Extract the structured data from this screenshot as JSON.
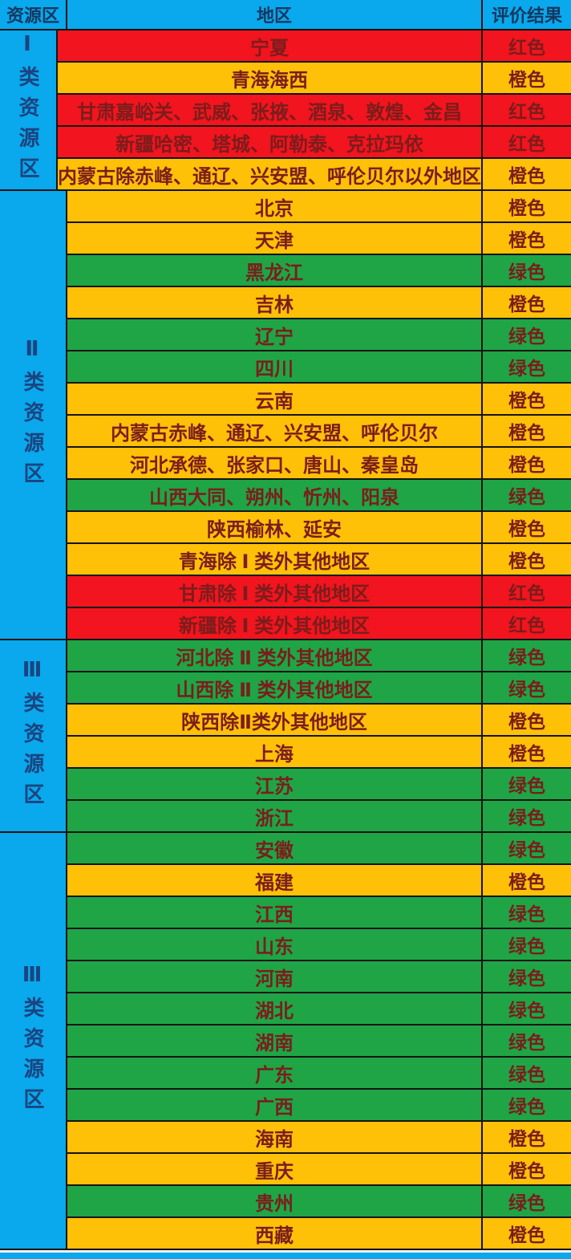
{
  "header": {
    "col_zone": "资源区",
    "col_region": "地区",
    "col_result": "评价结果"
  },
  "colors": {
    "blue": "#0AA8EC",
    "red": "#F2141E",
    "orange": "#FFC008",
    "green": "#1FA546"
  },
  "result_labels": {
    "red": "红色",
    "orange": "橙色",
    "green": "绿色"
  },
  "chart_data": {
    "type": "table",
    "title": "",
    "columns": [
      "资源区",
      "地区",
      "评价结果"
    ],
    "groups": [
      {
        "label": "Ⅰ类资源区",
        "rows": [
          {
            "region": "宁夏",
            "color": "red",
            "result": "红色"
          },
          {
            "region": "青海海西",
            "color": "orange",
            "result": "橙色"
          },
          {
            "region": "甘肃嘉峪关、武威、张掖、酒泉、敦煌、金昌",
            "color": "red",
            "result": "红色"
          },
          {
            "region": "新疆哈密、塔城、阿勒泰、克拉玛依",
            "color": "red",
            "result": "红色"
          },
          {
            "region": "内蒙古除赤峰、通辽、兴安盟、呼伦贝尔以外地区",
            "color": "orange",
            "result": "橙色"
          }
        ]
      },
      {
        "label": "Ⅱ类资源区",
        "rows": [
          {
            "region": "北京",
            "color": "orange",
            "result": "橙色"
          },
          {
            "region": "天津",
            "color": "orange",
            "result": "橙色"
          },
          {
            "region": "黑龙江",
            "color": "green",
            "result": "绿色"
          },
          {
            "region": "吉林",
            "color": "orange",
            "result": "橙色"
          },
          {
            "region": "辽宁",
            "color": "green",
            "result": "绿色"
          },
          {
            "region": "四川",
            "color": "green",
            "result": "绿色"
          },
          {
            "region": "云南",
            "color": "orange",
            "result": "橙色"
          },
          {
            "region": "内蒙古赤峰、通辽、兴安盟、呼伦贝尔",
            "color": "orange",
            "result": "橙色"
          },
          {
            "region": "河北承德、张家口、唐山、秦皇岛",
            "color": "orange",
            "result": "橙色"
          },
          {
            "region": "山西大同、朔州、忻州、阳泉",
            "color": "green",
            "result": "绿色"
          },
          {
            "region": "陕西榆林、延安",
            "color": "orange",
            "result": "橙色"
          },
          {
            "region": "青海除 Ⅰ 类外其他地区",
            "color": "orange",
            "result": "橙色"
          },
          {
            "region": "甘肃除 Ⅰ 类外其他地区",
            "color": "red",
            "result": "红色"
          },
          {
            "region": "新疆除 Ⅰ 类外其他地区",
            "color": "red",
            "result": "红色"
          }
        ]
      },
      {
        "label": "Ⅲ类资源区",
        "rows": [
          {
            "region": "河北除 Ⅱ 类外其他地区",
            "color": "green",
            "result": "绿色"
          },
          {
            "region": "山西除 Ⅱ 类外其他地区",
            "color": "green",
            "result": "绿色"
          },
          {
            "region": "陕西除Ⅱ类外其他地区",
            "color": "orange",
            "result": "橙色"
          },
          {
            "region": "上海",
            "color": "orange",
            "result": "橙色"
          },
          {
            "region": "江苏",
            "color": "green",
            "result": "绿色"
          },
          {
            "region": "浙江",
            "color": "green",
            "result": "绿色"
          }
        ]
      },
      {
        "label": "Ⅲ类资源区",
        "rows": [
          {
            "region": "安徽",
            "color": "green",
            "result": "绿色"
          },
          {
            "region": "福建",
            "color": "orange",
            "result": "橙色"
          },
          {
            "region": "江西",
            "color": "green",
            "result": "绿色"
          },
          {
            "region": "山东",
            "color": "green",
            "result": "绿色"
          },
          {
            "region": "河南",
            "color": "green",
            "result": "绿色"
          },
          {
            "region": "湖北",
            "color": "green",
            "result": "绿色"
          },
          {
            "region": "湖南",
            "color": "green",
            "result": "绿色"
          },
          {
            "region": "广东",
            "color": "green",
            "result": "绿色"
          },
          {
            "region": "广西",
            "color": "green",
            "result": "绿色"
          },
          {
            "region": "海南",
            "color": "orange",
            "result": "橙色"
          },
          {
            "region": "重庆",
            "color": "orange",
            "result": "橙色"
          },
          {
            "region": "贵州",
            "color": "green",
            "result": "绿色"
          },
          {
            "region": "西藏",
            "color": "orange",
            "result": "橙色"
          }
        ]
      }
    ]
  }
}
